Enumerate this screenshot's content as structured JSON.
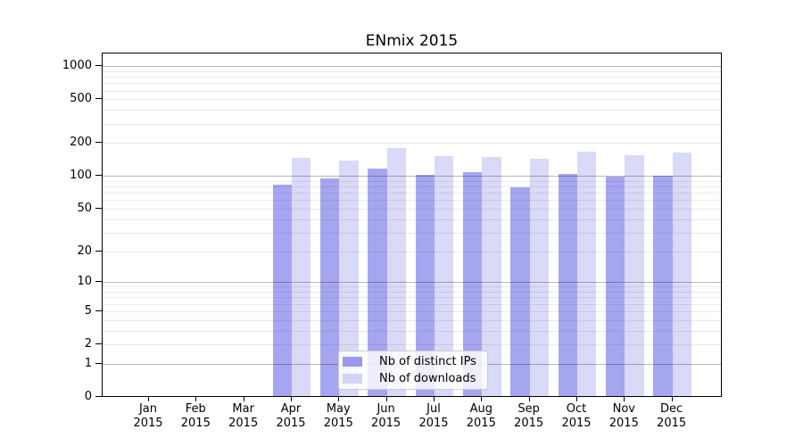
{
  "title": "ENmix 2015",
  "legend": {
    "items": [
      {
        "label": "Nb of distinct IPs",
        "color": "#9999ee"
      },
      {
        "label": "Nb of downloads",
        "color": "#d3d3f7"
      }
    ]
  },
  "chart_data": {
    "type": "bar",
    "title": "ENmix 2015",
    "categories": [
      "Jan 2015",
      "Feb 2015",
      "Mar 2015",
      "Apr 2015",
      "May 2015",
      "Jun 2015",
      "Jul 2015",
      "Aug 2015",
      "Sep 2015",
      "Oct 2015",
      "Nov 2015",
      "Dec 2015"
    ],
    "series": [
      {
        "name": "Nb of distinct IPs",
        "color": "#9999ee",
        "values": [
          0,
          0,
          0,
          83,
          95,
          117,
          102,
          108,
          79,
          105,
          98,
          100
        ]
      },
      {
        "name": "Nb of downloads",
        "color": "#d3d3f7",
        "values": [
          0,
          0,
          0,
          145,
          139,
          181,
          151,
          148,
          144,
          166,
          154,
          165
        ]
      }
    ],
    "xlabel": "",
    "ylabel": "",
    "y_axis": {
      "scale": "log10(value+1)",
      "ticks": [
        0,
        1,
        2,
        5,
        10,
        20,
        50,
        100,
        200,
        500,
        1000
      ],
      "max": 1300
    },
    "grid": true,
    "gridlines_over_bars": true,
    "legend_position": "bottom-center",
    "colors": {
      "background": "#ffffff",
      "axis": "#000000",
      "major_grid": "#b8b8b8",
      "minor_grid": "#ebebeb"
    }
  }
}
